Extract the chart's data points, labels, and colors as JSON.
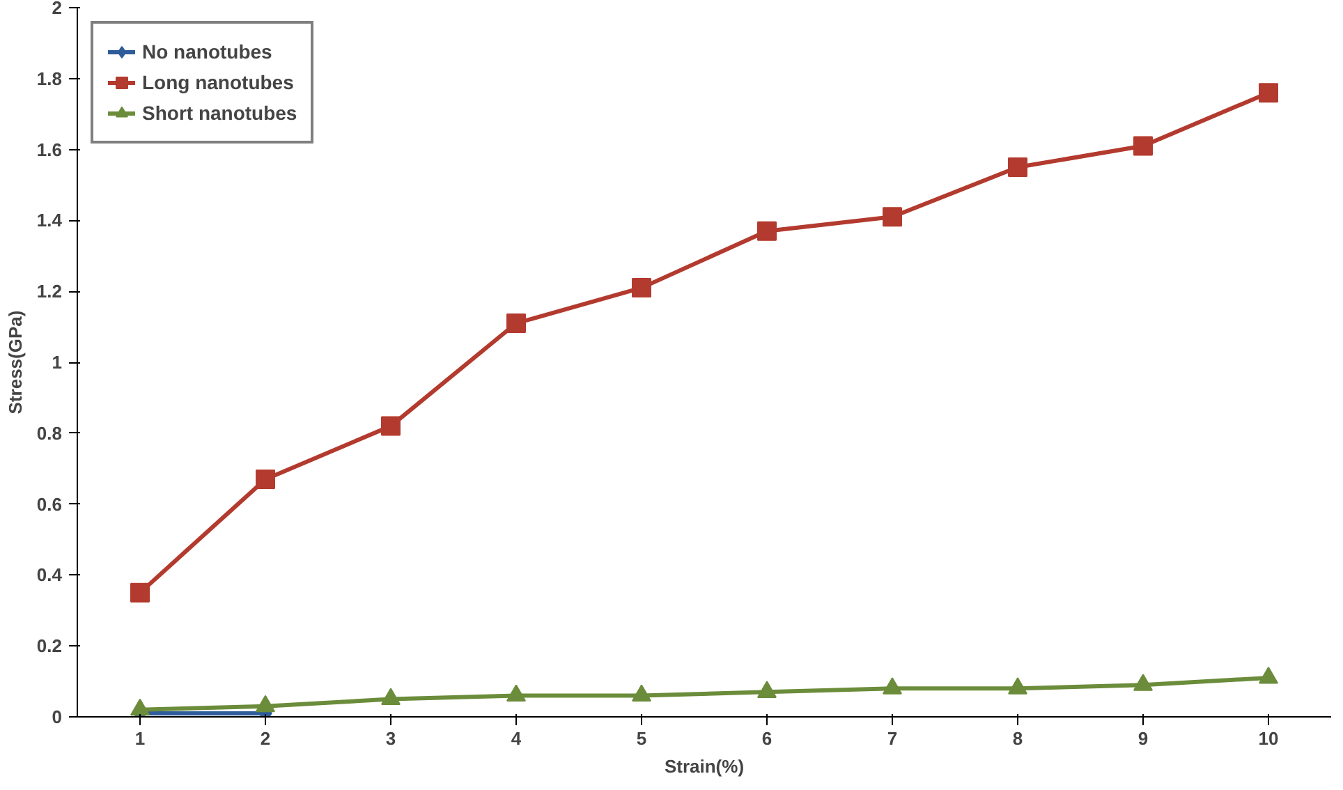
{
  "chart_data": {
    "type": "line",
    "xlabel": "Strain(%)",
    "ylabel": "Stress(GPa)",
    "categories": [
      "1",
      "2",
      "3",
      "4",
      "5",
      "6",
      "7",
      "8",
      "9",
      "10"
    ],
    "series": [
      {
        "name": "No nanotubes",
        "color": "#2e5c9a",
        "marker": "diamond",
        "values": [
          0.01,
          0.01,
          null,
          null,
          null,
          null,
          null,
          null,
          null,
          null
        ]
      },
      {
        "name": "Long nanotubes",
        "color": "#b33a2e",
        "marker": "square",
        "values": [
          0.35,
          0.67,
          0.82,
          1.11,
          1.21,
          1.37,
          1.41,
          1.55,
          1.61,
          1.76
        ]
      },
      {
        "name": "Short nanotubes",
        "color": "#6b8c3a",
        "marker": "triangle",
        "values": [
          0.02,
          0.03,
          0.05,
          0.06,
          0.06,
          0.07,
          0.08,
          0.08,
          0.09,
          0.11
        ]
      }
    ],
    "ylim": [
      0,
      2
    ],
    "yticks": [
      0,
      0.2,
      0.4,
      0.6,
      0.8,
      1,
      1.2,
      1.4,
      1.6,
      1.8,
      2
    ],
    "grid": false,
    "legend": "top left",
    "line_style": "solid"
  }
}
